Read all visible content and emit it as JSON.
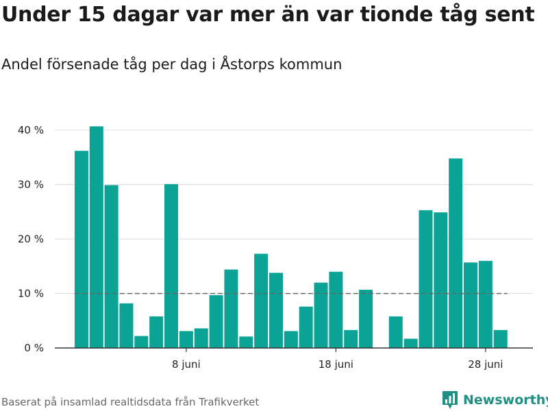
{
  "title": "Under 15 dagar var mer än var tionde tåg sent",
  "subtitle": "Andel försenade tåg per dag i Åstorps kommun",
  "footer": {
    "source": "Baserat på insamlad realtidsdata från Trafikverket",
    "brand": "Newsworthy"
  },
  "colors": {
    "bar": "#0aa396",
    "reference_line": "#666666",
    "grid": "#dddddd",
    "axis": "#333333",
    "brand": "#1f8f84"
  },
  "icons": {
    "brand_logo": "newsworthy-logo-icon"
  },
  "chart_data": {
    "type": "bar",
    "title": "Under 15 dagar var mer än var tionde tåg sent",
    "subtitle": "Andel försenade tåg per dag i Åstorps kommun",
    "xlabel": "",
    "ylabel": "",
    "unit": "%",
    "categories": [
      "1 juni",
      "2 juni",
      "3 juni",
      "4 juni",
      "5 juni",
      "6 juni",
      "7 juni",
      "8 juni",
      "9 juni",
      "10 juni",
      "11 juni",
      "12 juni",
      "13 juni",
      "14 juni",
      "15 juni",
      "16 juni",
      "17 juni",
      "18 juni",
      "19 juni",
      "20 juni",
      "21 juni",
      "22 juni",
      "23 juni",
      "24 juni",
      "25 juni",
      "26 juni",
      "27 juni",
      "28 juni",
      "29 juni"
    ],
    "values": [
      36.2,
      40.7,
      29.9,
      8.2,
      2.2,
      5.8,
      30.1,
      3.1,
      3.6,
      9.7,
      14.4,
      2.1,
      17.3,
      13.8,
      3.1,
      7.6,
      12.0,
      14.0,
      3.3,
      10.7,
      null,
      5.8,
      1.7,
      25.3,
      24.9,
      34.8,
      15.7,
      16.0,
      3.3
    ],
    "reference_line": {
      "value": 10,
      "style": "dashed"
    },
    "ylim": [
      0,
      40
    ],
    "y_ticks": [
      {
        "value": 0,
        "label": "0 %"
      },
      {
        "value": 10,
        "label": "10 %"
      },
      {
        "value": 20,
        "label": "20 %"
      },
      {
        "value": 30,
        "label": "30 %"
      },
      {
        "value": 40,
        "label": "40 %"
      }
    ],
    "x_ticks": [
      {
        "category": "8 juni",
        "label": "8 juni"
      },
      {
        "category": "18 juni",
        "label": "18 juni"
      },
      {
        "category": "28 juni",
        "label": "28 juni"
      }
    ],
    "grid": true,
    "legend": "none"
  }
}
